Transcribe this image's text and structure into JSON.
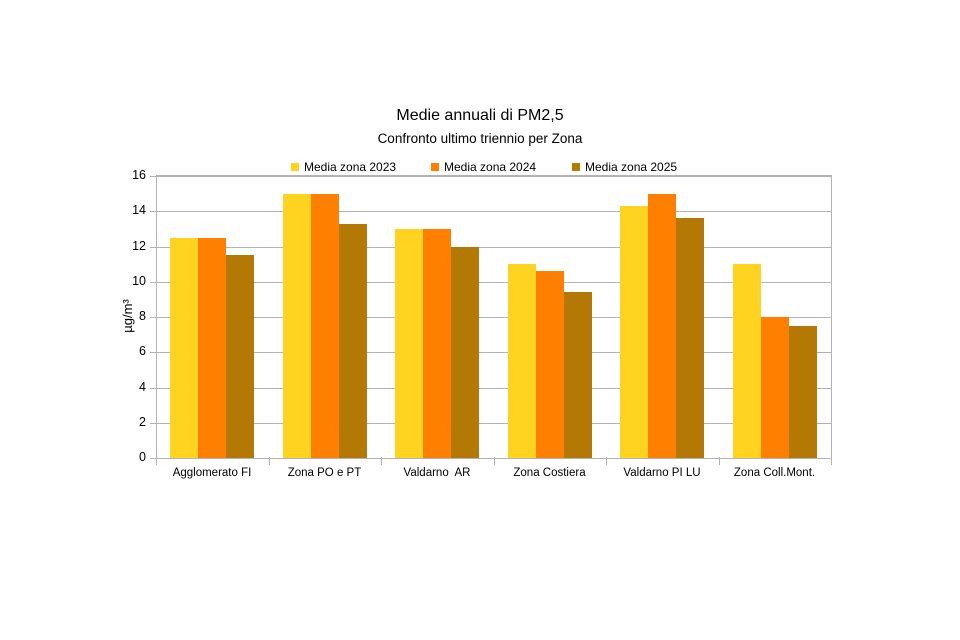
{
  "chart_data": {
    "type": "bar",
    "title": "Medie annuali di PM2,5",
    "subtitle": "Confronto ultimo triennio per Zona",
    "xlabel": "",
    "ylabel": "µg/m³",
    "ylim": [
      0,
      16
    ],
    "yticks": [
      0,
      2,
      4,
      6,
      8,
      10,
      12,
      14,
      16
    ],
    "grid": true,
    "legend_position": "top",
    "categories": [
      "Agglomerato FI",
      "Zona PO e PT",
      "Valdarno  AR",
      "Zona Costiera",
      "Valdarno PI LU",
      "Zona Coll.Mont."
    ],
    "series": [
      {
        "name": "Media zona 2023",
        "color": "#FFD320",
        "values": [
          12.5,
          15.0,
          13.0,
          11.0,
          14.3,
          11.0
        ]
      },
      {
        "name": "Media zona 2024",
        "color": "#FF8000",
        "values": [
          12.5,
          15.0,
          13.0,
          10.6,
          15.0,
          8.0
        ]
      },
      {
        "name": "Media zona 2025",
        "color": "#B47804",
        "values": [
          11.5,
          13.3,
          12.0,
          9.4,
          13.6,
          7.5
        ]
      }
    ]
  }
}
